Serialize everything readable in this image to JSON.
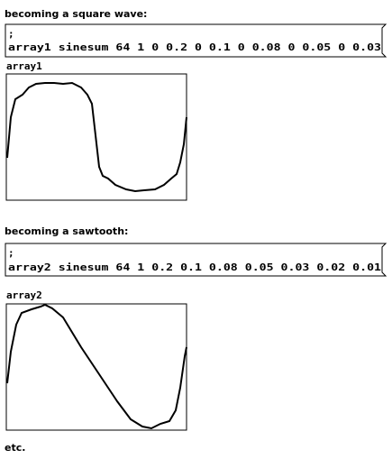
{
  "sections": [
    {
      "heading": "becoming a square wave:",
      "message": {
        "line1": ";",
        "line2": "array1 sinesum 64 1 0 0.2 0 0.1 0 0.08 0 0.05 0 0.03"
      },
      "array_label": "array1"
    },
    {
      "heading": "becoming a sawtooth:",
      "message": {
        "line1": ";",
        "line2": "array2 sinesum 64 1 0.2 0.1 0.08 0.05 0.03 0.02 0.01"
      },
      "array_label": "array2"
    }
  ],
  "footer": "etc."
}
